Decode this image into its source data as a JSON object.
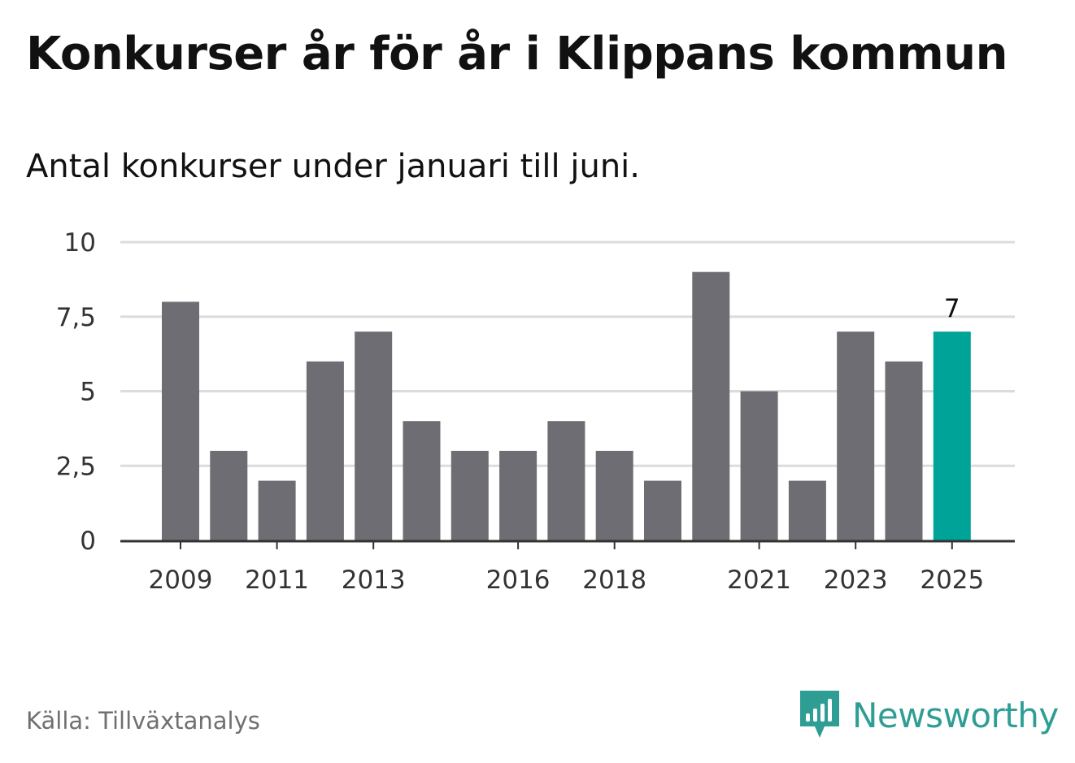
{
  "title": "Konkurser år för år i Klippans kommun",
  "subtitle": "Antal konkurser under januari till juni.",
  "source": "Källa: Tillväxtanalys",
  "brand": {
    "name": "Newsworthy",
    "icon": "bar-chart-speech-bubble-icon",
    "color": "#2e9e95"
  },
  "chart_data": {
    "type": "bar",
    "categories": [
      "2009",
      "2010",
      "2011",
      "2012",
      "2013",
      "2014",
      "2015",
      "2016",
      "2017",
      "2018",
      "2019",
      "2020",
      "2021",
      "2022",
      "2023",
      "2024",
      "2025"
    ],
    "values": [
      8,
      3,
      2,
      6,
      7,
      4,
      3,
      3,
      4,
      3,
      2,
      9,
      5,
      2,
      7,
      6,
      7
    ],
    "x_tick_labels": [
      "2009",
      "2011",
      "2013",
      "2016",
      "2018",
      "2021",
      "2023",
      "2025"
    ],
    "y_ticks": [
      0,
      2.5,
      5,
      7.5,
      10
    ],
    "y_tick_labels": [
      "0",
      "2,5",
      "5",
      "7,5",
      "10"
    ],
    "ylim": [
      0,
      10
    ],
    "highlight": {
      "category": "2025",
      "label": "7"
    },
    "colors": {
      "bar": "#6e6d73",
      "highlight": "#00a398",
      "grid": "#dcdcdc",
      "axis": "#333333"
    },
    "grid": true,
    "xlabel": "",
    "ylabel": ""
  }
}
